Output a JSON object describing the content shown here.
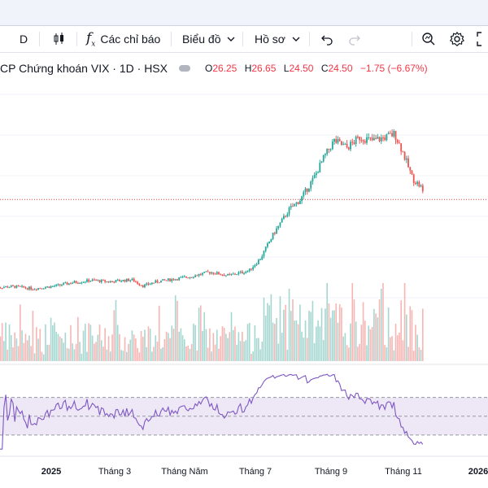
{
  "toolbar": {
    "interval": "D",
    "indicators_label": "Các chỉ báo",
    "chart_type_label": "Biểu đồ",
    "profile_label": "Hồ sơ"
  },
  "legend": {
    "title": "CP Chứng khoán VIX · 1D · HSX",
    "open_key": "O",
    "open": "26.25",
    "high_key": "H",
    "high": "26.65",
    "low_key": "L",
    "low": "24.50",
    "close_key": "C",
    "close": "24.50",
    "change": "−1.75 (−6.67%)"
  },
  "x_axis_labels": [
    "2025",
    "Tháng 3",
    "Tháng Năm",
    "Tháng 7",
    "Tháng 9",
    "Tháng 11",
    "2026"
  ],
  "colors": {
    "up": "#26a69a",
    "down": "#ef5350",
    "rsi": "#7e57c2",
    "price_line": "#f23645"
  },
  "chart_data": {
    "type": "candlestick",
    "series": [
      {
        "name": "price",
        "values": [
          [
            0,
            "2024-12-16",
            11.8
          ],
          [
            0,
            "2024-12-31",
            11.9
          ],
          [
            0,
            "2025-01-15",
            11.6
          ],
          [
            0,
            "2025-02-01",
            12.0
          ],
          [
            0,
            "2025-02-15",
            12.5
          ],
          [
            0,
            "2025-03-01",
            12.8
          ],
          [
            0,
            "2025-03-15",
            12.6
          ],
          [
            0,
            "2025-04-01",
            12.9
          ],
          [
            0,
            "2025-04-10",
            12.0
          ],
          [
            0,
            "2025-04-20",
            12.6
          ],
          [
            0,
            "2025-05-01",
            12.9
          ],
          [
            0,
            "2025-05-15",
            13.3
          ],
          [
            0,
            "2025-06-01",
            14.0
          ],
          [
            0,
            "2025-06-15",
            13.5
          ],
          [
            0,
            "2025-07-01",
            14.2
          ],
          [
            0,
            "2025-07-10",
            16.0
          ],
          [
            0,
            "2025-07-20",
            19.5
          ],
          [
            0,
            "2025-08-01",
            23.0
          ],
          [
            0,
            "2025-08-10",
            24.5
          ],
          [
            0,
            "2025-08-20",
            27.5
          ],
          [
            0,
            "2025-08-28",
            30.5
          ],
          [
            0,
            "2025-09-05",
            33.0
          ],
          [
            0,
            "2025-09-15",
            32.0
          ],
          [
            0,
            "2025-09-25",
            33.5
          ],
          [
            0,
            "2025-10-05",
            33.0
          ],
          [
            0,
            "2025-10-15",
            33.5
          ],
          [
            0,
            "2025-10-22",
            34.0
          ],
          [
            0,
            "2025-10-28",
            31.5
          ],
          [
            0,
            "2025-11-05",
            27.5
          ],
          [
            0,
            "2025-11-12",
            26.2
          ],
          [
            0,
            "2025-11-14",
            24.5
          ]
        ]
      }
    ],
    "last_close": 24.5,
    "rsi_levels": [
      70,
      50,
      30
    ]
  }
}
